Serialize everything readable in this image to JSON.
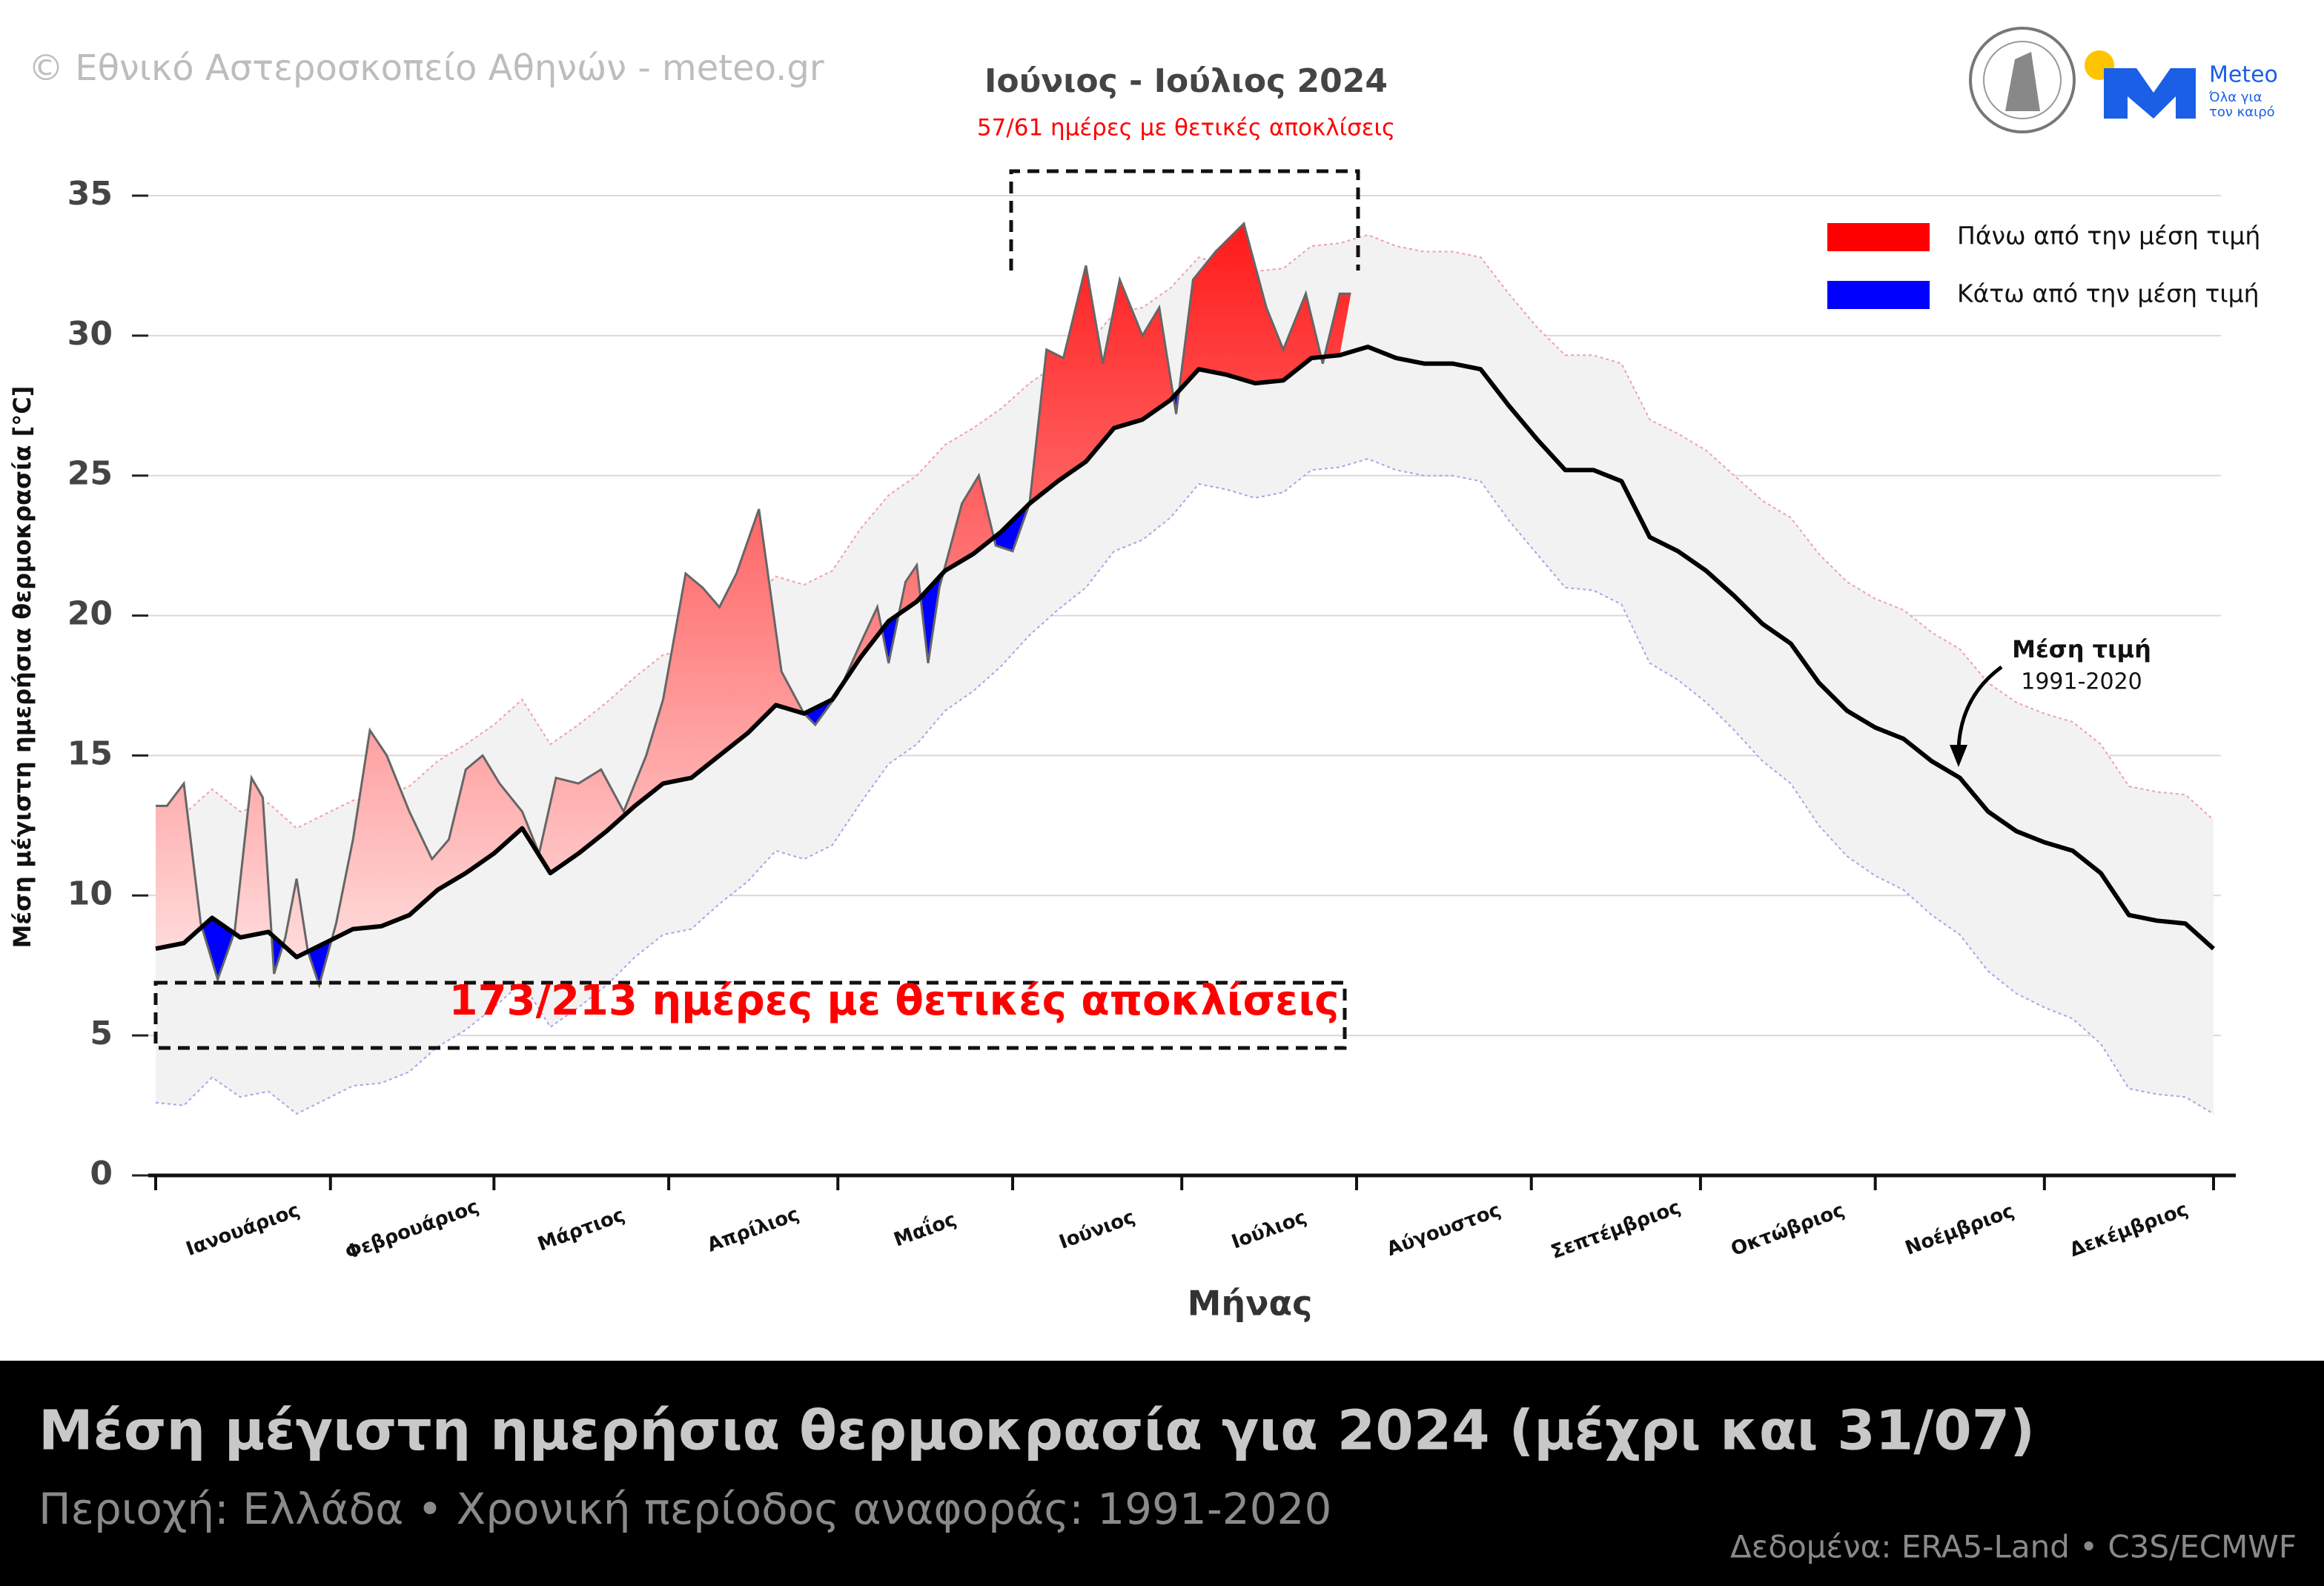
{
  "chart_data": {
    "type": "climate-band",
    "title": "Μέση μέγιστη ημερήσια θερμοκρασία για 2024 (μέχρι και 31/07)",
    "subtitle": "Περιοχή: Ελλάδα • Χρονική περίοδος αναφοράς: 1991-2020",
    "source": "Δεδομένα: ERA5-Land • C3S/ECMWF",
    "copyright": "© Εθνικό Αστεροσκοπείο Αθηνών - meteo.gr",
    "logo": {
      "name": "Meteo",
      "tagline": [
        "Όλα για",
        "τον καιρό"
      ]
    },
    "x_label": "Μήνας",
    "y_label": "Μέση μέγιστη ημερήσια θερμοκρασία [°C]",
    "categories": [
      "Ιανουάριος",
      "Φεβρουάριος",
      "Μάρτιος",
      "Απρίλιος",
      "Μαΐος",
      "Ιούνιος",
      "Ιούλιος",
      "Αύγουστος",
      "Σεπτέμβριος",
      "Οκτώβριος",
      "Νοέμβριος",
      "Δεκέμβριος"
    ],
    "xlim": [
      1,
      366
    ],
    "ylim": [
      0,
      35
    ],
    "yticks": [
      0,
      5,
      10,
      15,
      20,
      25,
      30,
      35
    ],
    "grid": true,
    "legend": [
      {
        "label": "Πάνω από την μέση τιμή",
        "color": "#ff0000"
      },
      {
        "label": "Κάτω από την μέση τιμή",
        "color": "#0000ff"
      }
    ],
    "climatology": {
      "mean_color": "#000000",
      "band_color": "#f2f2f2",
      "x": [
        1,
        6,
        11,
        16,
        21,
        26,
        31,
        36,
        41,
        46,
        51,
        56,
        61,
        66,
        71,
        76,
        81,
        86,
        91,
        96,
        101,
        106,
        111,
        116,
        121,
        126,
        131,
        136,
        141,
        146,
        151,
        156,
        161,
        166,
        171,
        176,
        181,
        186,
        191,
        196,
        201,
        206,
        211,
        216,
        221,
        226,
        231,
        236,
        241,
        246,
        251,
        256,
        261,
        266,
        271,
        276,
        281,
        286,
        291,
        296,
        301,
        306,
        311,
        316,
        321,
        326,
        331,
        336,
        341,
        346,
        351,
        356,
        361,
        366
      ],
      "mean": [
        8.1,
        8.3,
        9.2,
        8.5,
        8.7,
        7.8,
        8.3,
        8.8,
        8.9,
        9.3,
        10.2,
        10.8,
        11.5,
        12.4,
        10.8,
        11.5,
        12.3,
        13.2,
        14.0,
        14.2,
        15.0,
        15.8,
        16.8,
        16.5,
        17.0,
        18.5,
        19.8,
        20.5,
        21.6,
        22.2,
        23.0,
        24.0,
        24.8,
        25.5,
        26.7,
        27.0,
        27.7,
        28.8,
        28.6,
        28.3,
        28.4,
        29.2,
        29.3,
        29.6,
        29.2,
        29.0,
        29.0,
        28.8,
        27.5,
        26.3,
        25.2,
        25.2,
        24.8,
        22.8,
        22.3,
        21.6,
        20.7,
        19.7,
        19.0,
        17.6,
        16.6,
        16.0,
        15.6,
        14.8,
        14.2,
        13.0,
        12.3,
        11.9,
        11.6,
        10.8,
        9.3,
        9.1,
        9.0,
        8.1
      ],
      "upper": [
        12.7,
        12.9,
        13.8,
        13.0,
        13.3,
        12.4,
        12.9,
        13.4,
        13.5,
        13.9,
        14.8,
        15.4,
        16.1,
        17.0,
        15.4,
        16.1,
        16.9,
        17.8,
        18.6,
        18.8,
        19.6,
        20.4,
        21.4,
        21.1,
        21.6,
        23.1,
        24.3,
        25.0,
        26.1,
        26.7,
        27.4,
        28.3,
        29.0,
        29.6,
        30.8,
        31.0,
        31.7,
        32.8,
        32.5,
        32.3,
        32.4,
        33.2,
        33.3,
        33.6,
        33.2,
        33.0,
        33.0,
        32.8,
        31.5,
        30.3,
        29.3,
        29.3,
        29.0,
        27.0,
        26.5,
        25.9,
        25.0,
        24.1,
        23.5,
        22.2,
        21.2,
        20.6,
        20.2,
        19.4,
        18.8,
        17.6,
        16.9,
        16.5,
        16.2,
        15.4,
        13.9,
        13.7,
        13.6,
        12.7
      ],
      "lower": [
        2.6,
        2.5,
        3.5,
        2.8,
        3.0,
        2.2,
        2.7,
        3.2,
        3.3,
        3.7,
        4.6,
        5.2,
        6.0,
        6.9,
        5.3,
        6.0,
        6.8,
        7.8,
        8.6,
        8.8,
        9.7,
        10.5,
        11.6,
        11.3,
        11.8,
        13.3,
        14.7,
        15.4,
        16.6,
        17.3,
        18.2,
        19.3,
        20.2,
        21.0,
        22.3,
        22.7,
        23.5,
        24.7,
        24.5,
        24.2,
        24.4,
        25.2,
        25.3,
        25.6,
        25.2,
        25.0,
        25.0,
        24.8,
        23.4,
        22.2,
        21.0,
        20.9,
        20.4,
        18.3,
        17.7,
        16.9,
        15.9,
        14.8,
        14.0,
        12.5,
        11.4,
        10.7,
        10.2,
        9.3,
        8.6,
        7.3,
        6.5,
        6.0,
        5.6,
        4.7,
        3.1,
        2.9,
        2.8,
        2.2
      ]
    },
    "observed": {
      "x": [
        1,
        3,
        6,
        9,
        12,
        15,
        18,
        20,
        22,
        24,
        26,
        28,
        30,
        33,
        36,
        39,
        42,
        46,
        50,
        53,
        56,
        59,
        62,
        66,
        69,
        72,
        76,
        80,
        84,
        88,
        91,
        95,
        98,
        101,
        104,
        108,
        112,
        116,
        118,
        122,
        126,
        129,
        131,
        134,
        136,
        138,
        140,
        144,
        147,
        150,
        153,
        156,
        159,
        162,
        166,
        169,
        172,
        176,
        179,
        182,
        185,
        189,
        194,
        198,
        201,
        205,
        208,
        211,
        213
      ],
      "values": [
        13.2,
        13.2,
        14.0,
        9.0,
        7.0,
        8.7,
        14.2,
        13.5,
        7.2,
        8.5,
        10.6,
        8.0,
        6.8,
        9.0,
        12.0,
        15.9,
        15.0,
        13.0,
        11.3,
        12.0,
        14.5,
        15.0,
        14.0,
        13.0,
        11.5,
        14.2,
        14.0,
        14.5,
        13.0,
        15.0,
        17.0,
        21.5,
        21.0,
        20.3,
        21.5,
        23.8,
        18.0,
        16.5,
        16.1,
        17.2,
        19.0,
        20.3,
        18.3,
        21.2,
        21.8,
        18.3,
        21.0,
        24.0,
        25.0,
        22.5,
        22.3,
        24.0,
        29.5,
        29.2,
        32.5,
        29.0,
        32.0,
        30.0,
        31.0,
        27.2,
        32.0,
        33.0,
        34.0,
        31.0,
        29.5,
        31.5,
        29.0,
        31.5,
        31.5
      ]
    },
    "annotations": {
      "period_title": "Ιούνιος - Ιούλιος 2024",
      "period_subtitle": "57/61 ημέρες με θετικές αποκλίσεις",
      "total": "173/213 ημέρες με θετικές αποκλίσεις",
      "mean_label": "Μέση τιμή",
      "mean_period": "1991-2020"
    }
  }
}
